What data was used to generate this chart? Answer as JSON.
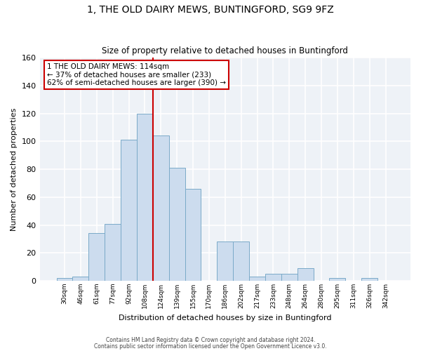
{
  "title_line1": "1, THE OLD DAIRY MEWS, BUNTINGFORD, SG9 9FZ",
  "title_line2": "Size of property relative to detached houses in Buntingford",
  "xlabel": "Distribution of detached houses by size in Buntingford",
  "ylabel": "Number of detached properties",
  "bar_labels": [
    "30sqm",
    "46sqm",
    "61sqm",
    "77sqm",
    "92sqm",
    "108sqm",
    "124sqm",
    "139sqm",
    "155sqm",
    "170sqm",
    "186sqm",
    "202sqm",
    "217sqm",
    "233sqm",
    "248sqm",
    "264sqm",
    "280sqm",
    "295sqm",
    "311sqm",
    "326sqm",
    "342sqm"
  ],
  "bar_values": [
    2,
    3,
    34,
    41,
    101,
    120,
    104,
    81,
    66,
    0,
    28,
    28,
    3,
    5,
    5,
    9,
    0,
    2,
    0,
    2,
    0
  ],
  "bar_color": "#ccdcee",
  "bar_edge_color": "#7aaac8",
  "vline_color": "#cc0000",
  "vline_x_index": 5.5,
  "ylim": [
    0,
    160
  ],
  "yticks": [
    0,
    20,
    40,
    60,
    80,
    100,
    120,
    140,
    160
  ],
  "annotation_box_text": "1 THE OLD DAIRY MEWS: 114sqm\n← 37% of detached houses are smaller (233)\n62% of semi-detached houses are larger (390) →",
  "annotation_box_color": "#cc0000",
  "footer_line1": "Contains HM Land Registry data © Crown copyright and database right 2024.",
  "footer_line2": "Contains public sector information licensed under the Open Government Licence v3.0.",
  "bg_color": "#ffffff",
  "plot_bg_color": "#eef2f7",
  "grid_color": "#ffffff",
  "spine_color": "#c0c8d8"
}
